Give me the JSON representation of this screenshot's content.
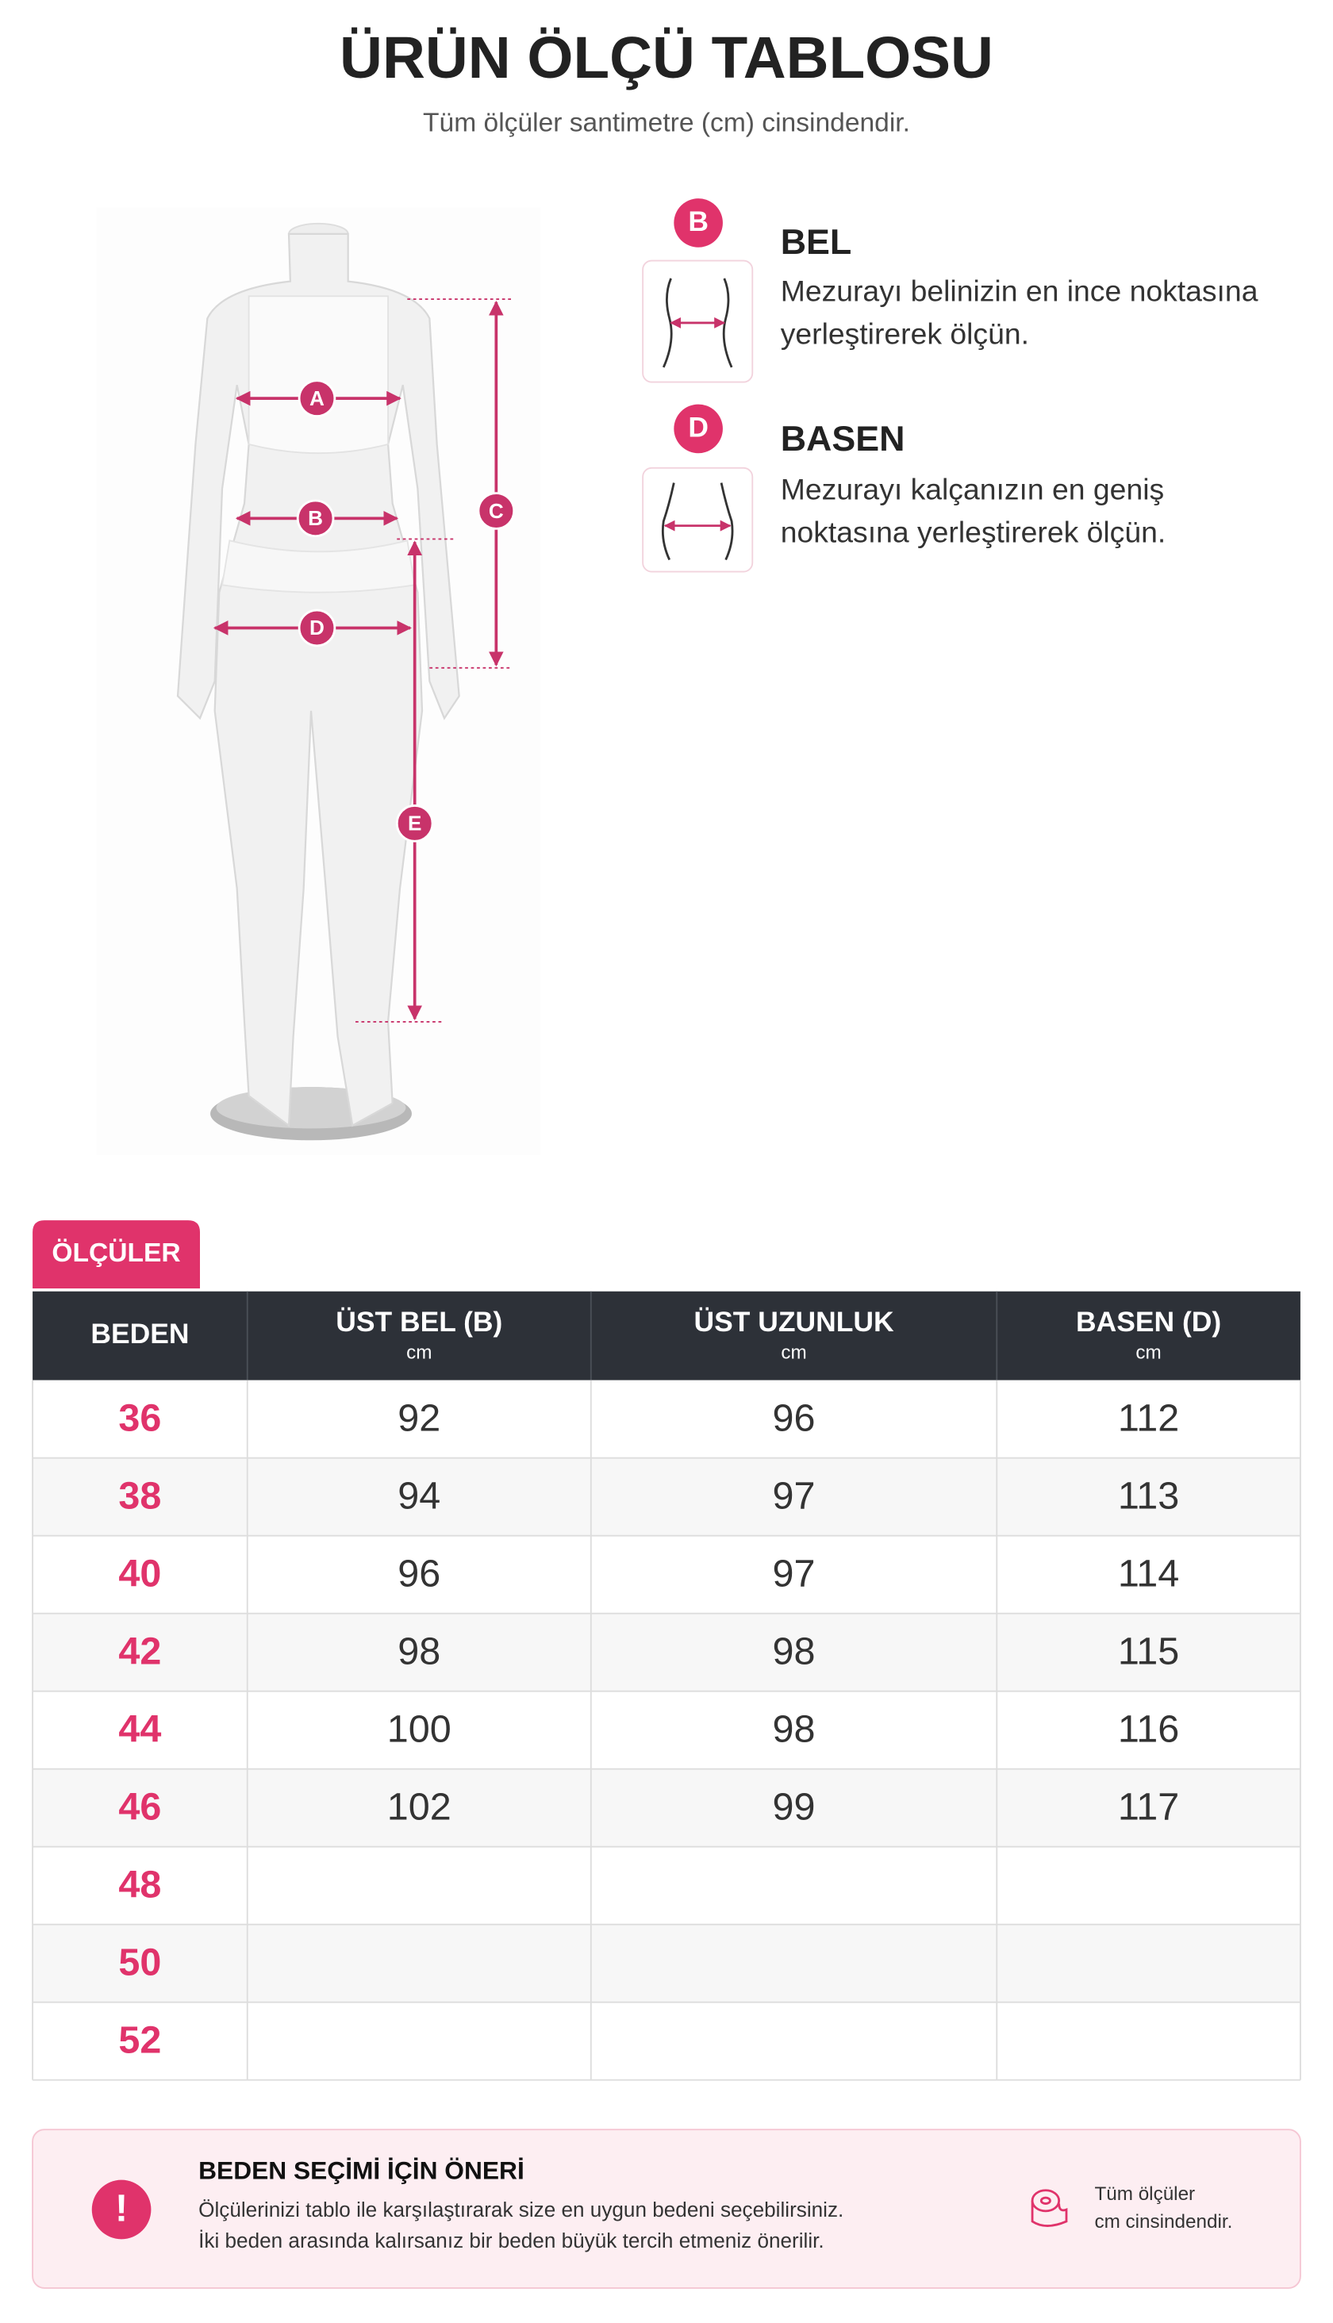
{
  "header": {
    "title": "ÜRÜN ÖLÇÜ TABLOSU",
    "subtitle": "Tüm ölçüler santimetre (cm) cinsindendir."
  },
  "mannequin": {
    "labels": [
      "A",
      "B",
      "C",
      "D",
      "E"
    ]
  },
  "measures": [
    {
      "badge": "B",
      "title": "BEL",
      "lines": [
        "Mezurayı belinizin en ince noktasına",
        "yerleştirerek ölçün."
      ]
    },
    {
      "badge": "D",
      "title": "BASEN",
      "lines": [
        "Mezurayı kalçanızın en geniş",
        "noktasına yerleştirerek ölçün."
      ]
    }
  ],
  "table": {
    "tab": "ÖLÇÜLER",
    "columns": [
      {
        "name": "BEDEN"
      },
      {
        "name": "ÜST BEL (B)",
        "unit": "cm"
      },
      {
        "name": "ÜST UZUNLUK",
        "unit": "cm"
      },
      {
        "name": "BASEN (D)",
        "unit": "cm"
      }
    ],
    "rows": [
      [
        36,
        92,
        96,
        112
      ],
      [
        38,
        94,
        97,
        113
      ],
      [
        40,
        96,
        97,
        114
      ],
      [
        42,
        98,
        98,
        115
      ],
      [
        44,
        100,
        98,
        116
      ],
      [
        46,
        102,
        99,
        117
      ],
      [
        48
      ],
      [
        50
      ],
      [
        52
      ]
    ]
  },
  "tip": {
    "icon": "!",
    "title": "BEDEN SEÇİMİ İÇİN ÖNERİ",
    "lines": [
      "Ölçülerinizi tablo ile karşılaştırarak size en uygun bedeni seçebilirsiniz.",
      "İki beden arasında kalırsanız bir beden büyük tercih etmeniz önerilir."
    ],
    "note": [
      "Tüm ölçüler",
      "cm cinsindendir."
    ]
  }
}
